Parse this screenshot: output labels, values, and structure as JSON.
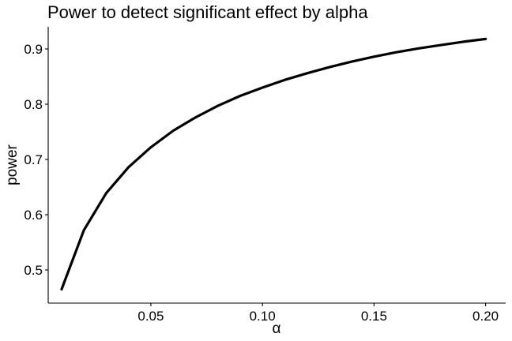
{
  "chart_data": {
    "type": "line",
    "title": "Power to detect significant effect by alpha",
    "xlabel": "α",
    "ylabel": "power",
    "xlim": [
      0.004,
      0.209
    ],
    "ylim": [
      0.44,
      0.94
    ],
    "x_ticks": [
      0.05,
      0.1,
      0.15,
      0.2
    ],
    "x_tick_labels": [
      "0.05",
      "0.10",
      "0.15",
      "0.20"
    ],
    "y_ticks": [
      0.5,
      0.6,
      0.7,
      0.8,
      0.9
    ],
    "y_tick_labels": [
      "0.5",
      "0.6",
      "0.7",
      "0.8",
      "0.9"
    ],
    "grid": false,
    "legend": "none",
    "series": [
      {
        "color": "#000000",
        "x": [
          0.01,
          0.02,
          0.03,
          0.04,
          0.05,
          0.06,
          0.07,
          0.08,
          0.09,
          0.1,
          0.11,
          0.12,
          0.13,
          0.14,
          0.15,
          0.16,
          0.17,
          0.18,
          0.19,
          0.2
        ],
        "y": [
          0.465,
          0.572,
          0.639,
          0.686,
          0.722,
          0.752,
          0.776,
          0.797,
          0.815,
          0.83,
          0.844,
          0.856,
          0.867,
          0.877,
          0.886,
          0.894,
          0.901,
          0.907,
          0.913,
          0.918
        ]
      }
    ]
  }
}
